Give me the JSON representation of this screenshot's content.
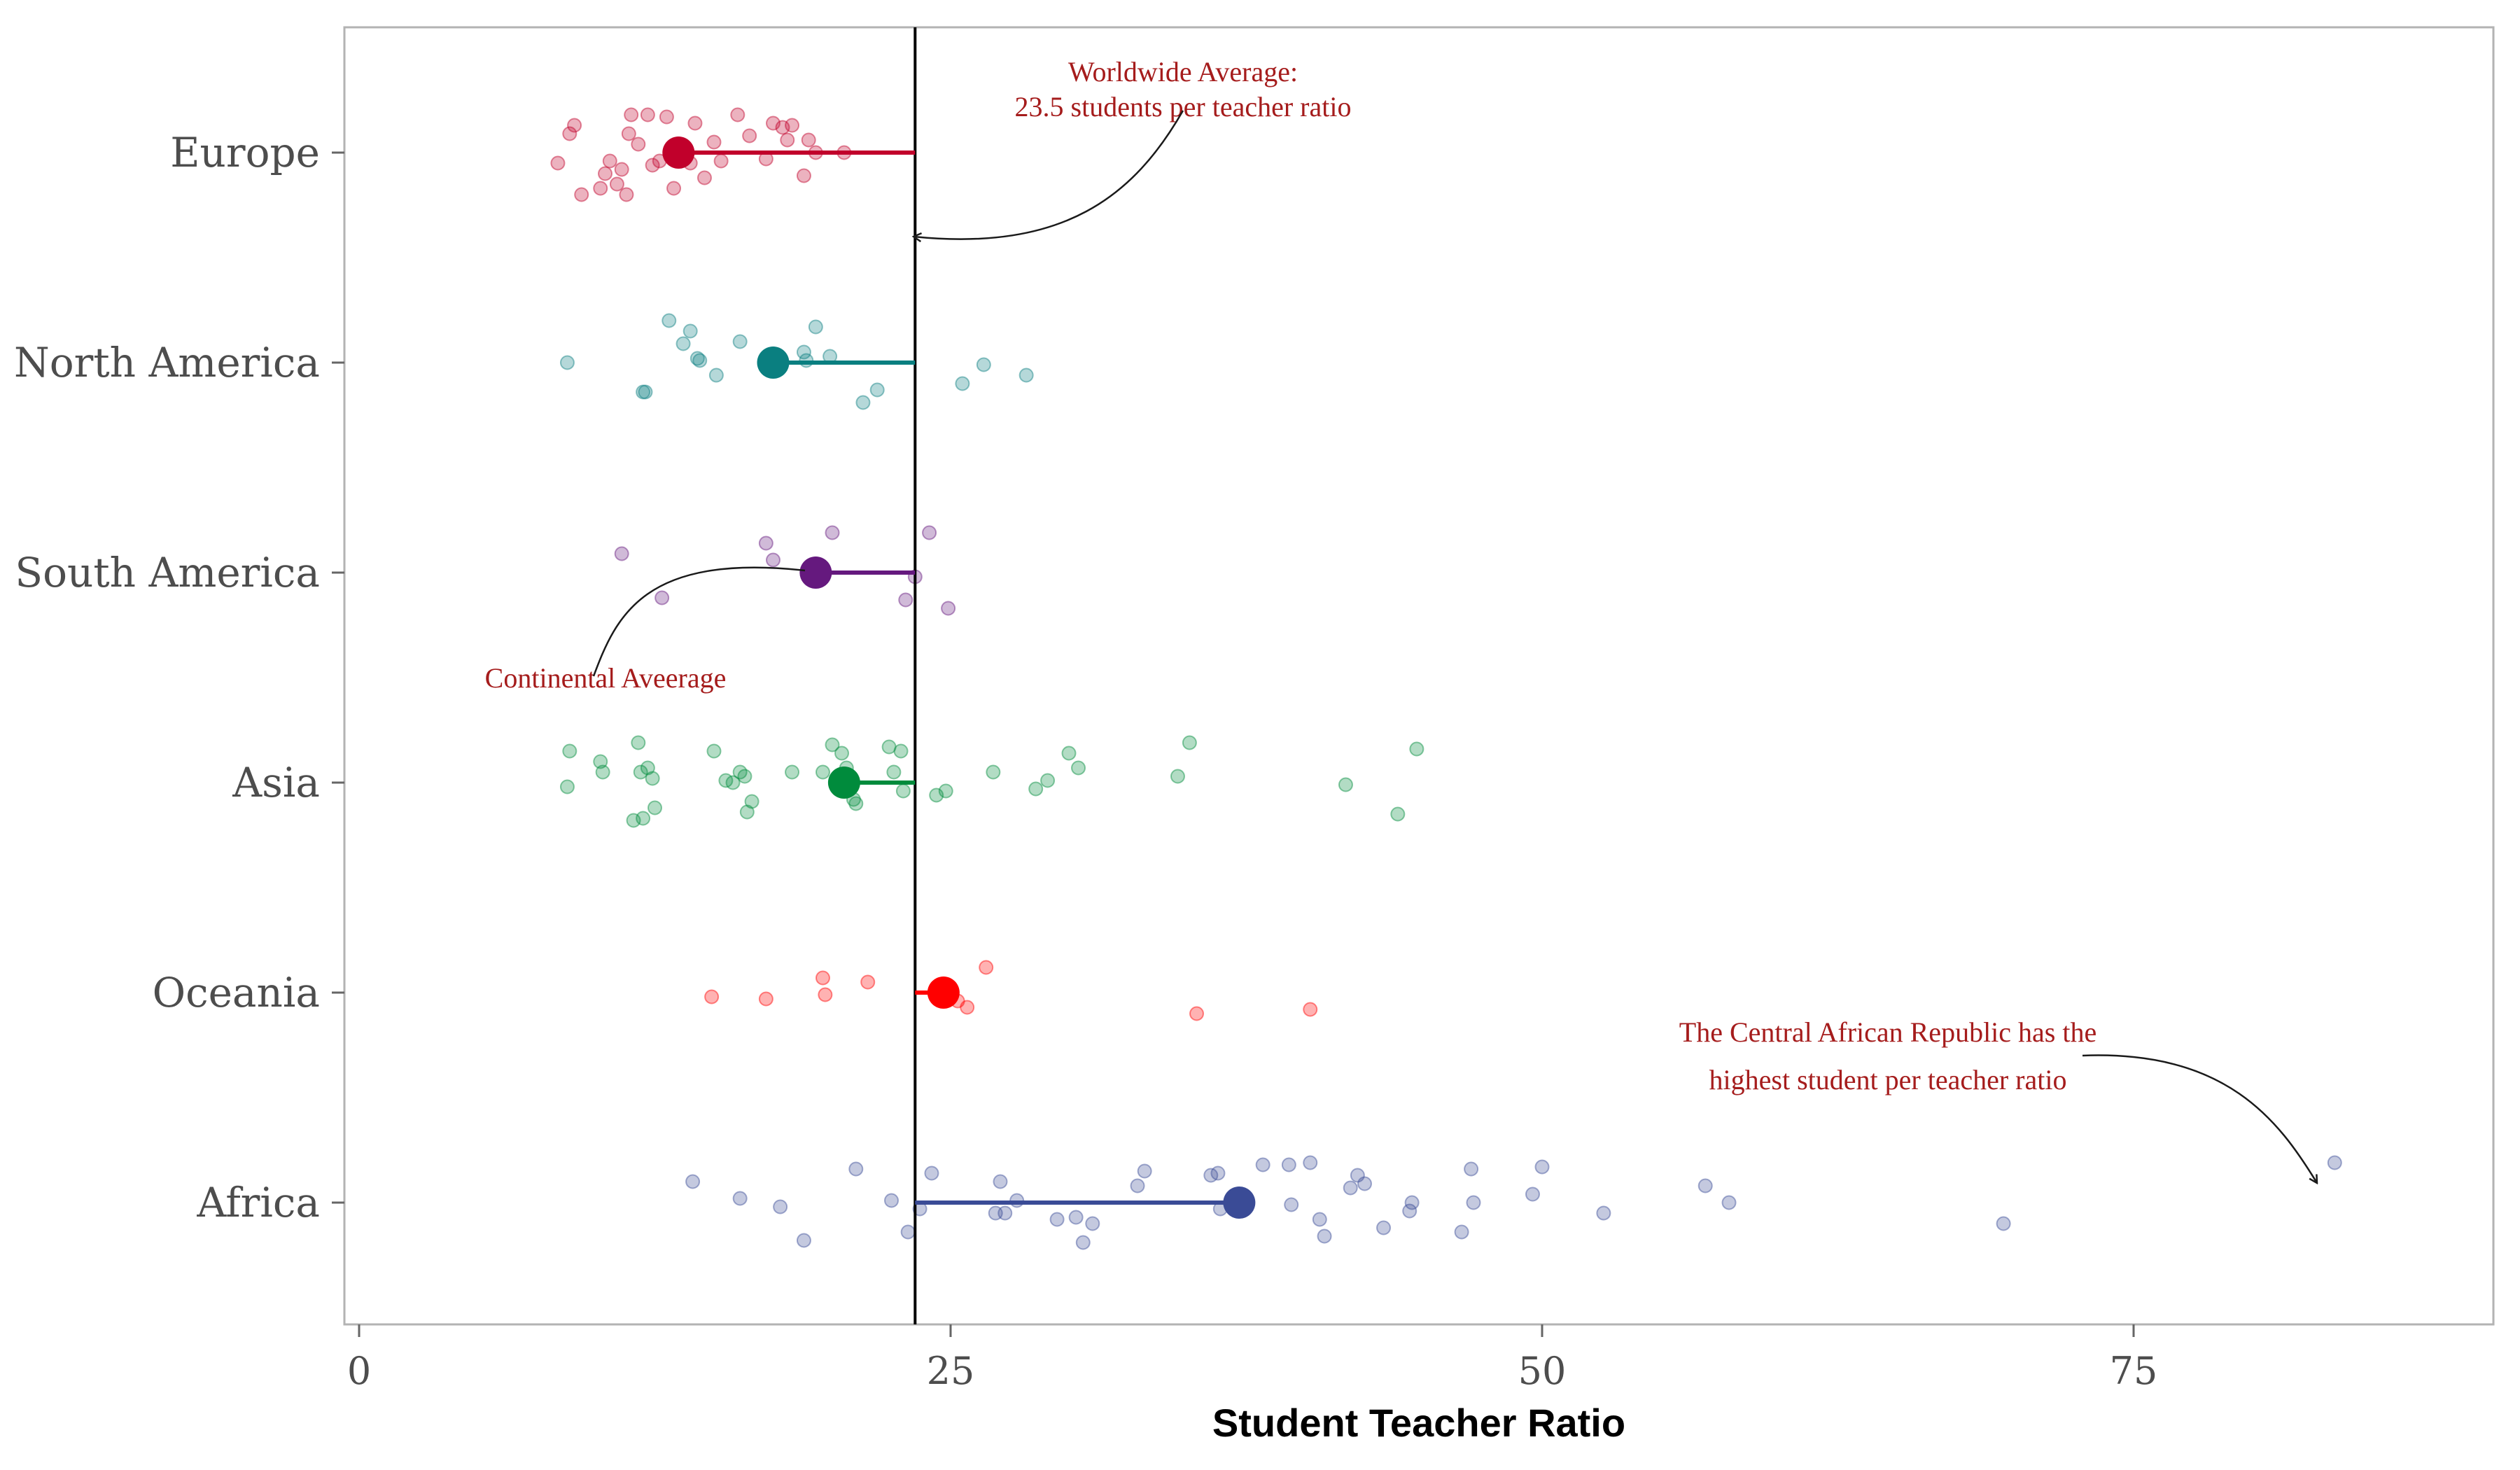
{
  "chart_data": {
    "type": "scatter",
    "xlabel": "Student Teacher Ratio",
    "ylabel": "",
    "xlim": [
      -1,
      90
    ],
    "xticks": [
      0,
      25,
      50,
      75
    ],
    "grid": false,
    "legend": "none",
    "worldwide_average": 23.5,
    "categories": [
      "Europe",
      "North America",
      "South America",
      "Asia",
      "Oceania",
      "Africa"
    ],
    "series": [
      {
        "category": "Europe",
        "color": "#c1002b",
        "average": 13.5,
        "points": [
          {
            "x": 8.4,
            "j": -0.05
          },
          {
            "x": 8.9,
            "j": 0.09
          },
          {
            "x": 9.1,
            "j": 0.13
          },
          {
            "x": 9.4,
            "j": -0.2
          },
          {
            "x": 10.2,
            "j": -0.17
          },
          {
            "x": 10.4,
            "j": -0.1
          },
          {
            "x": 10.6,
            "j": -0.04
          },
          {
            "x": 10.9,
            "j": -0.15
          },
          {
            "x": 11.1,
            "j": -0.08
          },
          {
            "x": 11.3,
            "j": -0.2
          },
          {
            "x": 11.4,
            "j": 0.09
          },
          {
            "x": 11.5,
            "j": 0.18
          },
          {
            "x": 11.8,
            "j": 0.04
          },
          {
            "x": 12.2,
            "j": 0.18
          },
          {
            "x": 12.4,
            "j": -0.06
          },
          {
            "x": 12.7,
            "j": -0.04
          },
          {
            "x": 13.0,
            "j": 0.17
          },
          {
            "x": 13.3,
            "j": -0.17
          },
          {
            "x": 13.6,
            "j": 0.03
          },
          {
            "x": 14.0,
            "j": -0.05
          },
          {
            "x": 14.2,
            "j": 0.14
          },
          {
            "x": 14.6,
            "j": -0.12
          },
          {
            "x": 15.0,
            "j": 0.05
          },
          {
            "x": 15.3,
            "j": -0.04
          },
          {
            "x": 16.0,
            "j": 0.18
          },
          {
            "x": 16.5,
            "j": 0.08
          },
          {
            "x": 17.2,
            "j": -0.03
          },
          {
            "x": 17.5,
            "j": 0.14
          },
          {
            "x": 17.9,
            "j": 0.12
          },
          {
            "x": 18.1,
            "j": 0.06
          },
          {
            "x": 18.3,
            "j": 0.13
          },
          {
            "x": 18.8,
            "j": -0.11
          },
          {
            "x": 19.0,
            "j": 0.06
          },
          {
            "x": 19.3,
            "j": 0.0
          },
          {
            "x": 20.5,
            "j": 0.0
          }
        ]
      },
      {
        "category": "North America",
        "color": "#0a7f80",
        "average": 17.5,
        "points": [
          {
            "x": 8.8,
            "j": 0.0
          },
          {
            "x": 12.0,
            "j": -0.14
          },
          {
            "x": 12.1,
            "j": -0.14
          },
          {
            "x": 13.1,
            "j": 0.2
          },
          {
            "x": 13.7,
            "j": 0.09
          },
          {
            "x": 14.0,
            "j": 0.15
          },
          {
            "x": 14.3,
            "j": 0.02
          },
          {
            "x": 14.4,
            "j": 0.01
          },
          {
            "x": 15.1,
            "j": -0.06
          },
          {
            "x": 16.1,
            "j": 0.1
          },
          {
            "x": 18.8,
            "j": 0.05
          },
          {
            "x": 18.9,
            "j": 0.01
          },
          {
            "x": 19.3,
            "j": 0.17
          },
          {
            "x": 19.9,
            "j": 0.03
          },
          {
            "x": 21.3,
            "j": -0.19
          },
          {
            "x": 21.9,
            "j": -0.13
          },
          {
            "x": 25.5,
            "j": -0.1
          },
          {
            "x": 26.4,
            "j": -0.01
          },
          {
            "x": 28.2,
            "j": -0.06
          }
        ]
      },
      {
        "category": "South America",
        "color": "#65197e",
        "average": 19.3,
        "points": [
          {
            "x": 11.1,
            "j": 0.09
          },
          {
            "x": 12.8,
            "j": -0.12
          },
          {
            "x": 17.2,
            "j": 0.14
          },
          {
            "x": 17.5,
            "j": 0.06
          },
          {
            "x": 20.0,
            "j": 0.19
          },
          {
            "x": 23.1,
            "j": -0.13
          },
          {
            "x": 23.5,
            "j": -0.02
          },
          {
            "x": 24.1,
            "j": 0.19
          },
          {
            "x": 24.9,
            "j": -0.17
          }
        ]
      },
      {
        "category": "Asia",
        "color": "#008b3c",
        "average": 20.5,
        "points": [
          {
            "x": 8.8,
            "j": -0.02
          },
          {
            "x": 8.9,
            "j": 0.15
          },
          {
            "x": 10.2,
            "j": 0.1
          },
          {
            "x": 10.3,
            "j": 0.05
          },
          {
            "x": 11.6,
            "j": -0.18
          },
          {
            "x": 11.8,
            "j": 0.19
          },
          {
            "x": 11.9,
            "j": 0.05
          },
          {
            "x": 12.0,
            "j": -0.17
          },
          {
            "x": 12.2,
            "j": 0.07
          },
          {
            "x": 12.4,
            "j": 0.02
          },
          {
            "x": 12.5,
            "j": -0.12
          },
          {
            "x": 15.0,
            "j": 0.15
          },
          {
            "x": 15.5,
            "j": 0.01
          },
          {
            "x": 15.8,
            "j": 0.0
          },
          {
            "x": 16.1,
            "j": 0.05
          },
          {
            "x": 16.3,
            "j": 0.03
          },
          {
            "x": 16.4,
            "j": -0.14
          },
          {
            "x": 16.6,
            "j": -0.09
          },
          {
            "x": 18.3,
            "j": 0.05
          },
          {
            "x": 19.6,
            "j": 0.05
          },
          {
            "x": 20.0,
            "j": 0.18
          },
          {
            "x": 20.4,
            "j": 0.14
          },
          {
            "x": 20.6,
            "j": 0.07
          },
          {
            "x": 20.9,
            "j": -0.08
          },
          {
            "x": 21.0,
            "j": -0.1
          },
          {
            "x": 22.4,
            "j": 0.17
          },
          {
            "x": 22.6,
            "j": 0.05
          },
          {
            "x": 22.9,
            "j": 0.15
          },
          {
            "x": 23.0,
            "j": -0.04
          },
          {
            "x": 24.4,
            "j": -0.06
          },
          {
            "x": 24.8,
            "j": -0.04
          },
          {
            "x": 26.8,
            "j": 0.05
          },
          {
            "x": 28.6,
            "j": -0.03
          },
          {
            "x": 29.1,
            "j": 0.01
          },
          {
            "x": 30.0,
            "j": 0.14
          },
          {
            "x": 30.4,
            "j": 0.07
          },
          {
            "x": 34.6,
            "j": 0.03
          },
          {
            "x": 35.1,
            "j": 0.19
          },
          {
            "x": 41.7,
            "j": -0.01
          },
          {
            "x": 43.9,
            "j": -0.15
          },
          {
            "x": 44.7,
            "j": 0.16
          }
        ]
      },
      {
        "category": "Oceania",
        "color": "#ff0000",
        "average": 24.7,
        "points": [
          {
            "x": 14.9,
            "j": -0.02
          },
          {
            "x": 17.2,
            "j": -0.03
          },
          {
            "x": 19.6,
            "j": 0.07
          },
          {
            "x": 19.7,
            "j": -0.01
          },
          {
            "x": 21.5,
            "j": 0.05
          },
          {
            "x": 25.3,
            "j": -0.04
          },
          {
            "x": 25.7,
            "j": -0.07
          },
          {
            "x": 26.5,
            "j": 0.12
          },
          {
            "x": 35.4,
            "j": -0.1
          },
          {
            "x": 40.2,
            "j": -0.08
          }
        ]
      },
      {
        "category": "Africa",
        "color": "#3a4b96",
        "average": 37.2,
        "points": [
          {
            "x": 14.1,
            "j": 0.1
          },
          {
            "x": 16.1,
            "j": 0.02
          },
          {
            "x": 17.8,
            "j": -0.02
          },
          {
            "x": 18.8,
            "j": -0.18
          },
          {
            "x": 21.0,
            "j": 0.16
          },
          {
            "x": 22.5,
            "j": 0.01
          },
          {
            "x": 23.2,
            "j": -0.14
          },
          {
            "x": 23.7,
            "j": -0.03
          },
          {
            "x": 24.2,
            "j": 0.14
          },
          {
            "x": 26.9,
            "j": -0.05
          },
          {
            "x": 27.1,
            "j": 0.1
          },
          {
            "x": 27.3,
            "j": -0.05
          },
          {
            "x": 27.8,
            "j": 0.01
          },
          {
            "x": 29.5,
            "j": -0.08
          },
          {
            "x": 30.3,
            "j": -0.07
          },
          {
            "x": 30.6,
            "j": -0.19
          },
          {
            "x": 31.0,
            "j": -0.1
          },
          {
            "x": 32.9,
            "j": 0.08
          },
          {
            "x": 33.2,
            "j": 0.15
          },
          {
            "x": 36.0,
            "j": 0.13
          },
          {
            "x": 36.3,
            "j": 0.14
          },
          {
            "x": 36.4,
            "j": -0.03
          },
          {
            "x": 38.2,
            "j": 0.18
          },
          {
            "x": 39.3,
            "j": 0.18
          },
          {
            "x": 39.4,
            "j": -0.01
          },
          {
            "x": 40.2,
            "j": 0.19
          },
          {
            "x": 40.6,
            "j": -0.08
          },
          {
            "x": 40.8,
            "j": -0.16
          },
          {
            "x": 41.9,
            "j": 0.07
          },
          {
            "x": 42.2,
            "j": 0.13
          },
          {
            "x": 42.5,
            "j": 0.09
          },
          {
            "x": 43.3,
            "j": -0.12
          },
          {
            "x": 44.4,
            "j": -0.04
          },
          {
            "x": 44.5,
            "j": 0.0
          },
          {
            "x": 46.6,
            "j": -0.14
          },
          {
            "x": 47.0,
            "j": 0.16
          },
          {
            "x": 47.1,
            "j": 0.0
          },
          {
            "x": 49.6,
            "j": 0.04
          },
          {
            "x": 50.0,
            "j": 0.17
          },
          {
            "x": 52.6,
            "j": -0.05
          },
          {
            "x": 56.9,
            "j": 0.08
          },
          {
            "x": 57.9,
            "j": 0.0
          },
          {
            "x": 69.5,
            "j": -0.1
          },
          {
            "x": 83.5,
            "j": 0.19
          }
        ]
      }
    ],
    "annotations": {
      "worldwide_line1": "Worldwide Average:",
      "worldwide_line2": "23.5 students per teacher ratio",
      "continental": "Continental Aveerage",
      "car_line1": "The Central African Republic has the",
      "car_line2": "highest student per teacher ratio"
    }
  }
}
